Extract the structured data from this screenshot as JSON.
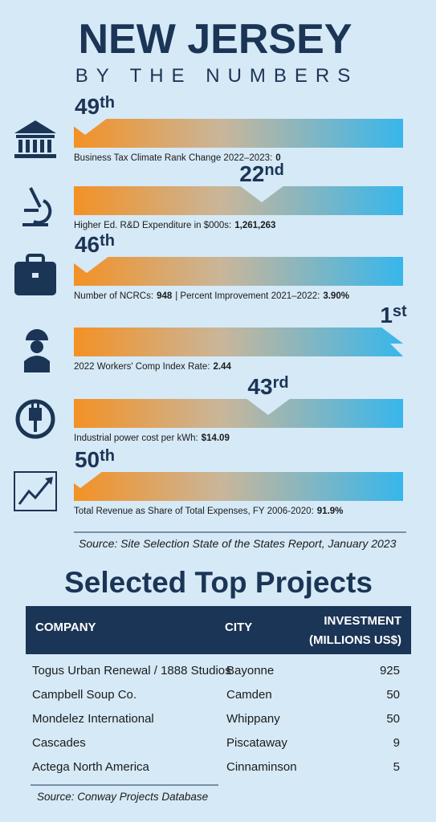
{
  "header": {
    "title": "NEW JERSEY",
    "subtitle": "BY THE NUMBERS"
  },
  "metrics": [
    {
      "rank": "49",
      "suffix": "th",
      "label": "Business Tax Climate Rank Change 2022–2023:",
      "value": "0"
    },
    {
      "rank": "22",
      "suffix": "nd",
      "label": "Higher Ed. R&D Expenditure in $000s:",
      "value": "1,261,263"
    },
    {
      "rank": "46",
      "suffix": "th",
      "label": "Number of NCRCs:",
      "value": "948",
      "label2": "| Percent Improvement 2021–2022:",
      "value2": "3.90%"
    },
    {
      "rank": "1",
      "suffix": "st",
      "label": "2022 Workers' Comp Index Rate:",
      "value": "2.44"
    },
    {
      "rank": "43",
      "suffix": "rd",
      "label": "Industrial power cost per kWh:",
      "value": "$14.09"
    },
    {
      "rank": "50",
      "suffix": "th",
      "label": "Total Revenue as Share of Total Expenses, FY 2006-2020:",
      "value": "91.9%"
    }
  ],
  "source1": "Source: Site Selection State of the States Report, January 2023",
  "projects": {
    "title": "Selected Top Projects",
    "headers": [
      "COMPANY",
      "CITY",
      "INVESTMENT",
      "(MILLIONS US$)"
    ],
    "rows": [
      [
        "Togus Urban Renewal / 1888 Studios",
        "Bayonne",
        "925"
      ],
      [
        "Campbell Soup Co.",
        "Camden",
        "50"
      ],
      [
        "Mondelez International",
        "Whippany",
        "50"
      ],
      [
        "Cascades",
        "Piscataway",
        "9"
      ],
      [
        "Actega North America",
        "Cinnaminson",
        "5"
      ]
    ],
    "source": "Source: Conway Projects Database"
  }
}
